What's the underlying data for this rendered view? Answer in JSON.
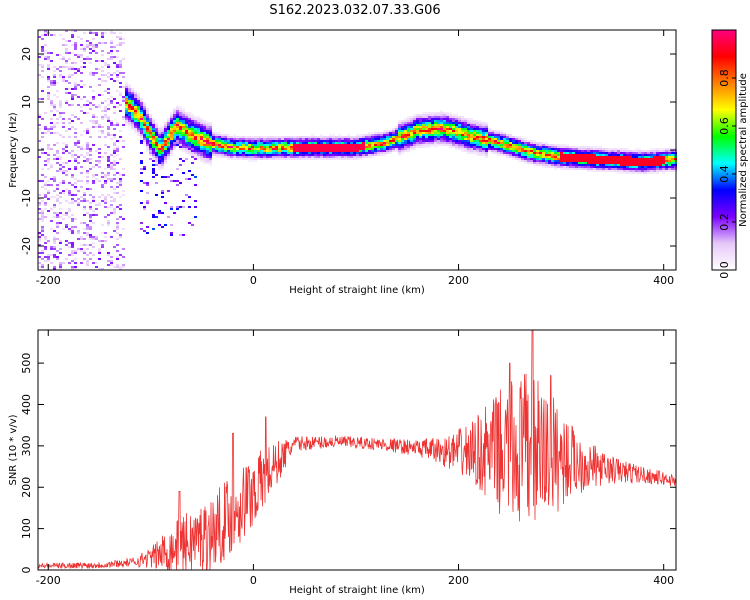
{
  "title": "S162.2023.032.07.33.G06",
  "chart_data": [
    {
      "type": "heatmap",
      "panel": "spectrogram",
      "xlabel": "Height of straight line (km)",
      "ylabel": "Frequency (Hz)",
      "xlim": [
        -210,
        412
      ],
      "ylim": [
        -25,
        25
      ],
      "x_ticks": [
        -200,
        0,
        200,
        400
      ],
      "y_ticks": [
        -20,
        -10,
        0,
        10,
        20
      ],
      "colorbar": {
        "label": "Normalized spectral amplitude",
        "range": [
          0,
          1
        ],
        "ticks": [
          0.0,
          0.2,
          0.4,
          0.6,
          0.8
        ],
        "colors": [
          "#ffffff",
          "#e6c8f8",
          "#7b00ff",
          "#0000ff",
          "#00ffff",
          "#00ff00",
          "#ffff00",
          "#ff8000",
          "#ff0000",
          "#ff0080"
        ]
      },
      "ridge": [
        {
          "x": -125,
          "f": 10
        },
        {
          "x": -110,
          "f": 7
        },
        {
          "x": -100,
          "f": 3
        },
        {
          "x": -90,
          "f": 0
        },
        {
          "x": -75,
          "f": 5
        },
        {
          "x": -60,
          "f": 3
        },
        {
          "x": -45,
          "f": 1.5
        },
        {
          "x": -20,
          "f": 0.5
        },
        {
          "x": 0,
          "f": 0.3
        },
        {
          "x": 50,
          "f": 0.5
        },
        {
          "x": 100,
          "f": 0.5
        },
        {
          "x": 130,
          "f": 1.5
        },
        {
          "x": 160,
          "f": 4
        },
        {
          "x": 185,
          "f": 4.5
        },
        {
          "x": 210,
          "f": 3
        },
        {
          "x": 240,
          "f": 1.5
        },
        {
          "x": 270,
          "f": -0.5
        },
        {
          "x": 300,
          "f": -1.5
        },
        {
          "x": 340,
          "f": -2
        },
        {
          "x": 380,
          "f": -2.5
        },
        {
          "x": 412,
          "f": -2
        }
      ]
    },
    {
      "type": "line",
      "panel": "snr",
      "xlabel": "Height of straight line (km)",
      "ylabel": "SNR (10 * v/v)",
      "xlim": [
        -210,
        412
      ],
      "ylim": [
        0,
        580
      ],
      "x_ticks": [
        -200,
        0,
        200,
        400
      ],
      "y_ticks": [
        0,
        100,
        200,
        300,
        400,
        500
      ],
      "color": "#ee3333",
      "envelope": [
        {
          "x": -210,
          "base": 10,
          "amp": 6
        },
        {
          "x": -150,
          "base": 12,
          "amp": 8
        },
        {
          "x": -120,
          "base": 18,
          "amp": 10
        },
        {
          "x": -100,
          "base": 30,
          "amp": 25
        },
        {
          "x": -80,
          "base": 50,
          "amp": 60
        },
        {
          "x": -60,
          "base": 70,
          "amp": 80
        },
        {
          "x": -40,
          "base": 90,
          "amp": 90
        },
        {
          "x": -20,
          "base": 140,
          "amp": 100
        },
        {
          "x": 0,
          "base": 190,
          "amp": 90
        },
        {
          "x": 20,
          "base": 250,
          "amp": 60
        },
        {
          "x": 40,
          "base": 305,
          "amp": 18
        },
        {
          "x": 80,
          "base": 310,
          "amp": 15
        },
        {
          "x": 120,
          "base": 305,
          "amp": 15
        },
        {
          "x": 160,
          "base": 295,
          "amp": 20
        },
        {
          "x": 190,
          "base": 285,
          "amp": 40
        },
        {
          "x": 215,
          "base": 285,
          "amp": 80
        },
        {
          "x": 240,
          "base": 285,
          "amp": 150
        },
        {
          "x": 265,
          "base": 285,
          "amp": 200
        },
        {
          "x": 285,
          "base": 280,
          "amp": 170
        },
        {
          "x": 310,
          "base": 265,
          "amp": 90
        },
        {
          "x": 340,
          "base": 245,
          "amp": 40
        },
        {
          "x": 380,
          "base": 230,
          "amp": 20
        },
        {
          "x": 412,
          "base": 215,
          "amp": 15
        }
      ],
      "peaks": [
        {
          "x": -72,
          "y": 190
        },
        {
          "x": -20,
          "y": 330
        },
        {
          "x": 12,
          "y": 370
        },
        {
          "x": 250,
          "y": 500
        },
        {
          "x": 272,
          "y": 580
        },
        {
          "x": 290,
          "y": 470
        }
      ]
    }
  ]
}
